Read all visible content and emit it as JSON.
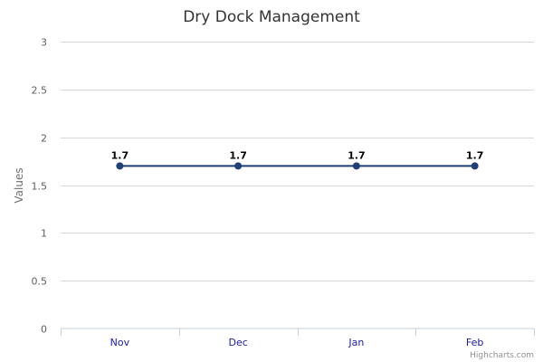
{
  "chart_data": {
    "type": "line",
    "title": "Dry Dock Management",
    "xlabel": "",
    "ylabel": "Values",
    "categories": [
      "Nov",
      "Dec",
      "Jan",
      "Feb"
    ],
    "series": [
      {
        "values": [
          1.7,
          1.7,
          1.7,
          1.7
        ],
        "color": "#1f3f77"
      }
    ],
    "ylim": [
      0,
      3
    ],
    "yticks": [
      "0",
      "0.5",
      "1",
      "1.5",
      "2",
      "2.5",
      "3"
    ],
    "data_labels": [
      "1.7",
      "1.7",
      "1.7",
      "1.7"
    ],
    "grid": true,
    "legend": "none"
  },
  "credits": "Highcharts.com"
}
